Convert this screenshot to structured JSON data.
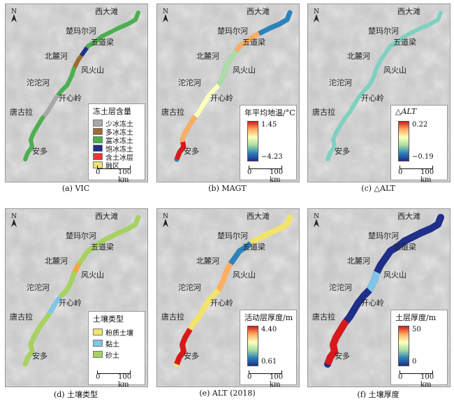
{
  "places": {
    "xidatan": "西大滩",
    "chumaerhe": "楚玛尔河",
    "wudaoliang": "五道梁",
    "beiluhe": "北麓河",
    "fenghuoshan": "风火山",
    "tuotuohe": "沱沱河",
    "kaixinling": "开心岭",
    "tanggula": "唐古拉",
    "anduo": "安多"
  },
  "north_label": "N",
  "scalebar": {
    "zero": "0",
    "dist": "100 km"
  },
  "panels": [
    {
      "caption": "(a) VIC",
      "legend": {
        "title": "冻土层含量",
        "items": [
          {
            "label": "少冰冻土",
            "color": "#a8a8a8"
          },
          {
            "label": "多冰冻土",
            "color": "#9c6b32"
          },
          {
            "label": "富冰冻土",
            "color": "#4caf50"
          },
          {
            "label": "饱冰冻土",
            "color": "#1f2f8a"
          },
          {
            "label": "含土冰层",
            "color": "#e53935"
          },
          {
            "label": "融区",
            "color": "#f2e36b"
          }
        ]
      }
    },
    {
      "caption": "(b) MAGT",
      "legend": {
        "title": "年平均地温/°C",
        "max": "1.45",
        "min": "−4.23"
      }
    },
    {
      "caption": "(c) △ALT",
      "legend": {
        "title_prefix": "△",
        "title_var": "ALT",
        "max": "0.22",
        "min": "−0.19"
      }
    },
    {
      "caption": "(d) 土壤类型",
      "legend": {
        "title": "土壤类型",
        "items": [
          {
            "label": "粉质土壤",
            "color": "#f2e36b"
          },
          {
            "label": "黏土",
            "color": "#7ec6e8"
          },
          {
            "label": "砂土",
            "color": "#a8d162"
          }
        ]
      }
    },
    {
      "caption": "(e) ALT (2018)",
      "legend": {
        "title": "活动层厚度/m",
        "max": "4.40",
        "min": "0.61"
      }
    },
    {
      "caption": "(f) 土壤厚度",
      "legend": {
        "title": "土层厚度/m",
        "max": "50",
        "min": "0"
      }
    }
  ],
  "colors": {
    "terrain": "#c6c6c6",
    "ramp_rainbow": [
      "#d7191c",
      "#fdae61",
      "#ffffbf",
      "#abdda4",
      "#2b83ba",
      "#1f2f8a"
    ]
  }
}
